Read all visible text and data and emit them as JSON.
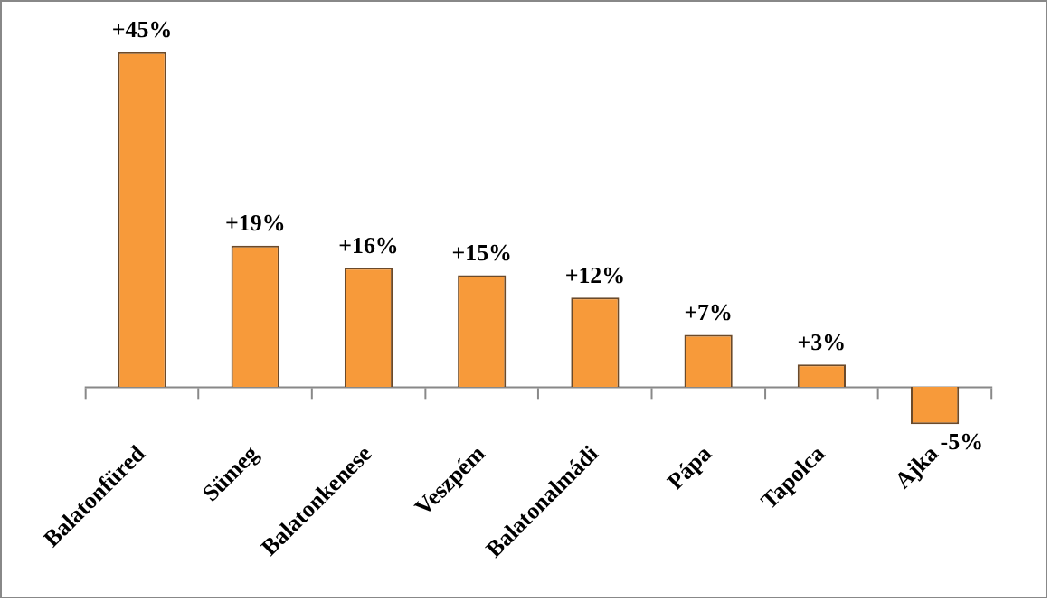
{
  "chart_data": {
    "type": "bar",
    "categories": [
      "Balatonfüred",
      "Sümeg",
      "Balatonkenese",
      "Veszpém",
      "Balatonalmádi",
      "Pápa",
      "Tapolca",
      "Ajka"
    ],
    "values": [
      45,
      19,
      16,
      15,
      12,
      7,
      3,
      -5
    ],
    "value_labels": [
      "+45%",
      "+19%",
      "+16%",
      "+15%",
      "+12%",
      "+7%",
      "+3%",
      "-5%"
    ],
    "color": "#f79a3a",
    "grid": false,
    "legend": false
  }
}
